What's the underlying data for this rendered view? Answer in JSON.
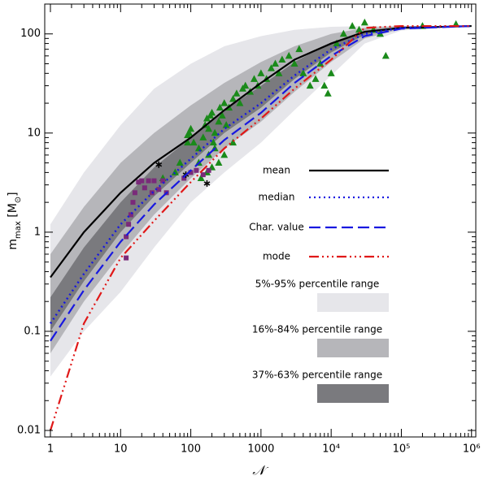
{
  "chart_data": {
    "type": "line",
    "xlabel": "𝒩",
    "ylabel": [
      {
        "text": "m"
      },
      {
        "text": "max",
        "sub": true
      },
      {
        "text": " [M"
      },
      {
        "text": "⊙",
        "sub": true
      },
      {
        "text": "]"
      }
    ],
    "xscale": "log",
    "yscale": "log",
    "xlim": [
      0.83,
      1150000
    ],
    "ylim": [
      0.0086,
      200
    ],
    "xticks": [
      1,
      10,
      100,
      1000,
      {
        "value": 10000,
        "label": "10⁴"
      },
      {
        "value": 100000,
        "label": "10⁵"
      },
      {
        "value": 1000000,
        "label": "10⁶"
      }
    ],
    "yticks": [
      0.01,
      0.1,
      1,
      10,
      100
    ],
    "x": [
      1,
      3,
      10,
      30,
      100,
      300,
      1000,
      3000,
      10000,
      30000,
      100000,
      1000000
    ],
    "bands": [
      {
        "name": "5%-95% percentile range",
        "color": "#e6e6ea",
        "lower": [
          0.035,
          0.1,
          0.25,
          0.7,
          2,
          4,
          8,
          17,
          38,
          80,
          108,
          120
        ],
        "upper": [
          1.2,
          4,
          12,
          28,
          50,
          75,
          95,
          110,
          118,
          120,
          120,
          120
        ]
      },
      {
        "name": "16%-84% percentile range",
        "color": "#b6b6ba",
        "lower": [
          0.06,
          0.2,
          0.6,
          1.5,
          3.5,
          7,
          13,
          26,
          52,
          90,
          112,
          120
        ],
        "upper": [
          0.6,
          1.8,
          5,
          10,
          19,
          32,
          52,
          75,
          100,
          115,
          120,
          120
        ]
      },
      {
        "name": "37%-63% percentile range",
        "color": "#7a7a7e",
        "lower": [
          0.1,
          0.32,
          1.0,
          2.3,
          5,
          10,
          18,
          35,
          65,
          98,
          114,
          120
        ],
        "upper": [
          0.22,
          0.7,
          2,
          4.5,
          9,
          17,
          30,
          52,
          82,
          108,
          118,
          120
        ]
      }
    ],
    "series": [
      {
        "name": "mean",
        "color": "#000000",
        "style": "solid",
        "values": [
          0.35,
          1.0,
          2.5,
          5.0,
          9,
          17,
          32,
          55,
          80,
          105,
          115,
          120
        ]
      },
      {
        "name": "median",
        "color": "#1818e0",
        "style": "dotted",
        "values": [
          0.12,
          0.38,
          1.2,
          2.6,
          5.5,
          11,
          20,
          38,
          70,
          100,
          115,
          120
        ]
      },
      {
        "name": "Char. value",
        "color": "#1818e0",
        "style": "dashed",
        "values": [
          0.08,
          0.26,
          0.8,
          1.9,
          4.2,
          8.5,
          16,
          32,
          60,
          95,
          113,
          120
        ]
      },
      {
        "name": "mode",
        "color": "#e01818",
        "style": "dashdotdotdot",
        "values": [
          0.01,
          0.12,
          0.55,
          1.3,
          3.2,
          7,
          14,
          28,
          55,
          115,
          120,
          120
        ]
      }
    ],
    "scatter": [
      {
        "marker": "triangle",
        "color": "#1a8a1a",
        "x": [
          90,
          95,
          100,
          90,
          110,
          130,
          150,
          160,
          170,
          180,
          190,
          200,
          210,
          220,
          250,
          260,
          280,
          300,
          320,
          350,
          400,
          450,
          500,
          550,
          600,
          700,
          800,
          900,
          1000,
          1200,
          1400,
          1600,
          1800,
          2000,
          2500,
          3000,
          3500,
          4000,
          5000,
          6000,
          7000,
          8000,
          9000,
          10000,
          12000,
          15000,
          20000,
          25000,
          30000,
          40000,
          50000,
          60000,
          200000,
          600000,
          250,
          200,
          170,
          140,
          300,
          400,
          180,
          220,
          130,
          60,
          70,
          40
        ],
        "y": [
          8,
          10,
          11,
          9.5,
          8,
          7,
          9,
          12,
          14,
          11,
          15,
          16,
          8,
          10,
          13,
          18,
          15,
          20,
          12,
          18,
          22,
          25,
          20,
          28,
          30,
          26,
          35,
          30,
          40,
          35,
          45,
          50,
          40,
          55,
          60,
          50,
          70,
          40,
          30,
          35,
          50,
          30,
          25,
          40,
          80,
          100,
          120,
          110,
          130,
          110,
          100,
          60,
          120,
          125,
          5,
          4.5,
          4,
          3.5,
          6,
          8,
          6,
          7,
          5,
          4,
          5,
          3.5
        ]
      },
      {
        "marker": "square",
        "color": "#7a2a7a",
        "x": [
          12,
          12,
          13,
          14,
          15,
          16,
          18,
          20,
          22,
          25,
          28,
          30,
          35,
          40,
          45,
          80,
          100,
          120,
          150,
          180
        ],
        "y": [
          0.55,
          0.9,
          1.2,
          1.5,
          2,
          2.5,
          3.2,
          3.3,
          2.8,
          3.3,
          2.5,
          3.3,
          2.7,
          3.3,
          2.5,
          3.5,
          4,
          4.2,
          3.8,
          4.2
        ]
      },
      {
        "marker": "asterisk",
        "color": "#000000",
        "x": [
          35,
          85,
          170
        ],
        "y": [
          4.8,
          3.8,
          3.1
        ]
      }
    ]
  }
}
